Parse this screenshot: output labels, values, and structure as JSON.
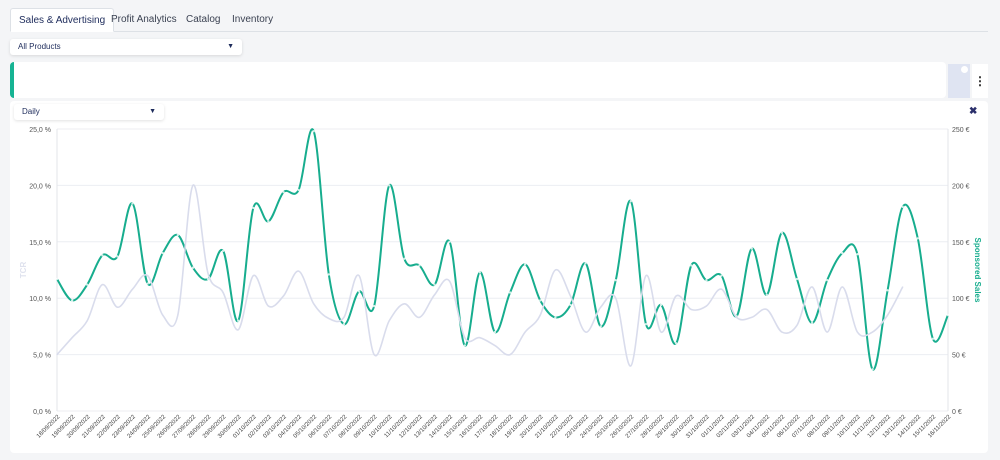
{
  "tabs": [
    {
      "label": "Sales & Advertising",
      "active": true
    },
    {
      "label": "Profit Analytics",
      "active": false
    },
    {
      "label": "Catalog",
      "active": false
    },
    {
      "label": "Inventory",
      "active": false
    }
  ],
  "filters": {
    "products": "All Products",
    "granularity": "Daily"
  },
  "colors": {
    "sponsored_sales": "#17ad8e",
    "tcr": "#d9dcec",
    "accent": "#16b393"
  },
  "chart_data": {
    "type": "line",
    "x": [
      "18/09/2022",
      "19/09/2022",
      "20/09/2022",
      "21/09/2022",
      "22/09/2022",
      "23/09/2022",
      "24/09/2022",
      "25/09/2022",
      "26/09/2022",
      "27/09/2022",
      "28/09/2022",
      "29/09/2022",
      "30/09/2022",
      "01/10/2022",
      "02/10/2022",
      "03/10/2022",
      "04/10/2022",
      "05/10/2022",
      "06/10/2022",
      "07/10/2022",
      "08/10/2022",
      "09/10/2022",
      "10/10/2022",
      "11/10/2022",
      "12/10/2022",
      "13/10/2022",
      "14/10/2022",
      "15/10/2022",
      "16/10/2022",
      "17/10/2022",
      "18/10/2022",
      "19/10/2022",
      "20/10/2022",
      "21/10/2022",
      "22/10/2022",
      "23/10/2022",
      "24/10/2022",
      "25/10/2022",
      "26/10/2022",
      "27/10/2022",
      "28/10/2022",
      "29/10/2022",
      "30/10/2022",
      "31/10/2022",
      "01/11/2022",
      "02/11/2022",
      "03/11/2022",
      "04/11/2022",
      "05/11/2022",
      "06/11/2022",
      "07/11/2022",
      "08/11/2022",
      "09/11/2022",
      "10/11/2022",
      "11/11/2022",
      "12/11/2022",
      "13/11/2022",
      "14/11/2022",
      "15/11/2022",
      "16/11/2022"
    ],
    "series": [
      {
        "name": "Sponsored Sales",
        "axis": "right",
        "color": "#17ad8e",
        "values": [
          117,
          98,
          112,
          138,
          137,
          184,
          113,
          140,
          156,
          127,
          117,
          142,
          80,
          180,
          168,
          194,
          196,
          248,
          121,
          77,
          106,
          93,
          200,
          135,
          129,
          112,
          150,
          58,
          123,
          70,
          105,
          130,
          98,
          83,
          94,
          131,
          75,
          116,
          186,
          77,
          94,
          60,
          129,
          116,
          120,
          84,
          144,
          103,
          158,
          117,
          78,
          116,
          140,
          139,
          37,
          107,
          181,
          153,
          64,
          85
        ]
      },
      {
        "name": "TCR",
        "axis": "left",
        "color": "#d9dcec",
        "values": [
          5.0,
          6.5,
          8.0,
          11.2,
          9.2,
          10.8,
          12.0,
          8.5,
          8.5,
          20.0,
          12.2,
          10.5,
          7.2,
          12.0,
          9.3,
          10.2,
          12.4,
          9.5,
          8.2,
          8.3,
          12.0,
          5.0,
          8.0,
          9.5,
          8.3,
          10.3,
          11.5,
          6.5,
          6.5,
          5.8,
          5.0,
          7.0,
          8.5,
          12.5,
          10.2,
          7.0,
          9.2,
          10.0,
          4.0,
          12.0,
          7.0,
          10.2,
          9.0,
          9.3,
          10.8,
          8.3,
          8.3,
          9.0,
          7.0,
          7.6,
          11.0,
          7.0,
          11.0,
          7.0,
          7.0,
          8.5,
          11.0,
          null,
          null,
          null
        ]
      }
    ],
    "y_left": {
      "label": "TCR",
      "ticks": [
        "0,0 %",
        "5,0 %",
        "10,0 %",
        "15,0 %",
        "20,0 %",
        "25,0 %"
      ],
      "ylim": [
        0,
        25
      ]
    },
    "y_right": {
      "label": "Sponsored Sales",
      "ticks": [
        "0 €",
        "50 €",
        "100 €",
        "150 €",
        "200 €",
        "250 €"
      ],
      "ylim": [
        0,
        250
      ]
    },
    "grid": true,
    "legend": "none"
  }
}
